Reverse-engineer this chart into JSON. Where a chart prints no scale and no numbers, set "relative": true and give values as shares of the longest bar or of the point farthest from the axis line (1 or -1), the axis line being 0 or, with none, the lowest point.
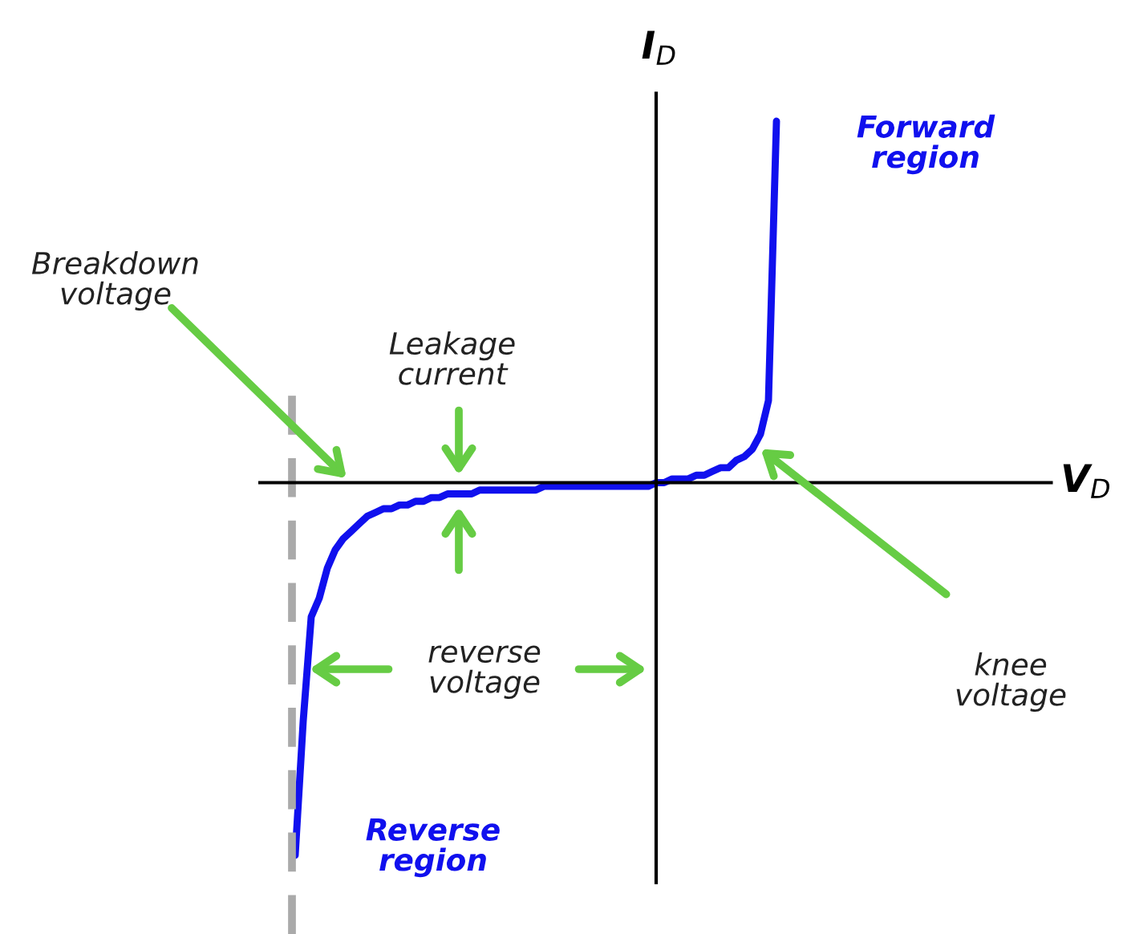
{
  "chart_data": {
    "type": "line",
    "relative": true,
    "ylabel": "I$_{D}$",
    "categories": [
      null,
      null,
      null,
      null,
      null,
      null,
      null,
      null,
      null,
      null,
      null,
      null,
      null,
      null,
      null,
      null,
      null,
      null,
      null,
      null,
      null,
      null,
      null,
      null,
      null,
      null,
      null,
      null,
      null,
      null,
      null,
      null,
      null,
      null,
      null,
      null,
      null,
      null,
      null,
      null,
      null,
      null,
      null,
      null,
      null,
      null,
      null,
      null,
      null,
      null,
      null,
      null,
      null,
      null,
      null,
      null,
      null,
      null,
      null,
      null,
      null
    ],
    "series": [
      {
        "color": "#1010ee",
        "values": [
          -1,
          -0.64,
          -0.36,
          -0.31,
          -0.23,
          -0.18,
          -0.15,
          -0.13,
          -0.11,
          -0.09,
          -0.08,
          -0.07,
          -0.07,
          -0.06,
          -0.06,
          -0.05,
          -0.05,
          -0.04,
          -0.04,
          -0.03,
          -0.03,
          -0.03,
          -0.03,
          -0.02,
          -0.02,
          -0.02,
          -0.02,
          -0.02,
          -0.02,
          -0.02,
          -0.02,
          -0.01,
          -0.01,
          -0.01,
          -0.01,
          -0.01,
          -0.01,
          -0.01,
          -0.01,
          -0.01,
          -0.01,
          -0.01,
          -0.01,
          -0.01,
          -0.01,
          0,
          0,
          0.01,
          0.01,
          0.01,
          0.02,
          0.02,
          0.03,
          0.04,
          0.04,
          0.06,
          0.07,
          0.09,
          0.13,
          0.22,
          0.97
        ]
      }
    ],
    "annotations": [
      "Forward region",
      "Breakdown voltage",
      "Leakage current",
      "reverse voltage",
      "knee voltage",
      "Reverse region",
      "V$_{D}$"
    ],
    "grid": false,
    "legend": false,
    "marker": "none",
    "line_style": "solid"
  }
}
